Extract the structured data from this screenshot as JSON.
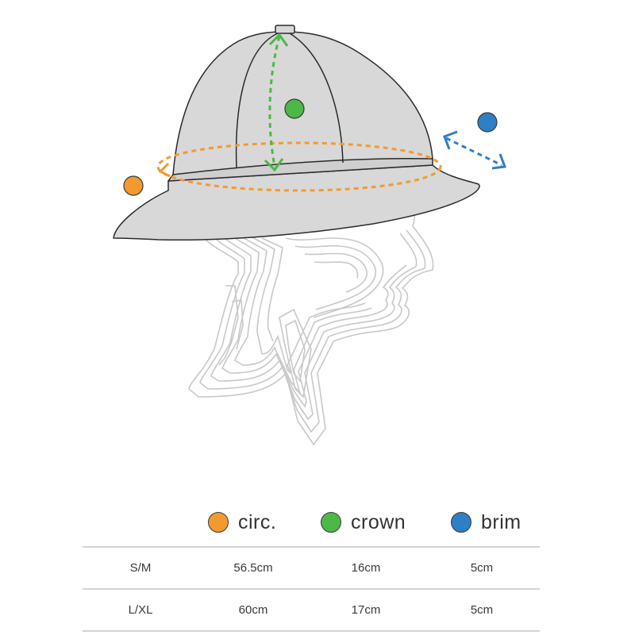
{
  "legend": [
    {
      "label": "circ.",
      "color": "#f39a2f"
    },
    {
      "label": "crown",
      "color": "#4cb848"
    },
    {
      "label": "brim",
      "color": "#2f7fc5"
    }
  ],
  "size_table": {
    "rows": [
      {
        "size": "S/M",
        "circ": "56.5cm",
        "crown": "16cm",
        "brim": "5cm"
      },
      {
        "size": "L/XL",
        "circ": "60cm",
        "crown": "17cm",
        "brim": "5cm"
      }
    ]
  },
  "colors": {
    "hat_fill": "#d8d8d8",
    "hat_outline": "#2a2a2a",
    "head_lines": "#c8c8c8",
    "circ": "#f39a2f",
    "crown": "#4cb848",
    "brim": "#2f7fc5"
  },
  "icons": [
    "hat-illustration",
    "head-illustration",
    "circ-marker-icon",
    "crown-marker-icon",
    "brim-marker-icon"
  ]
}
